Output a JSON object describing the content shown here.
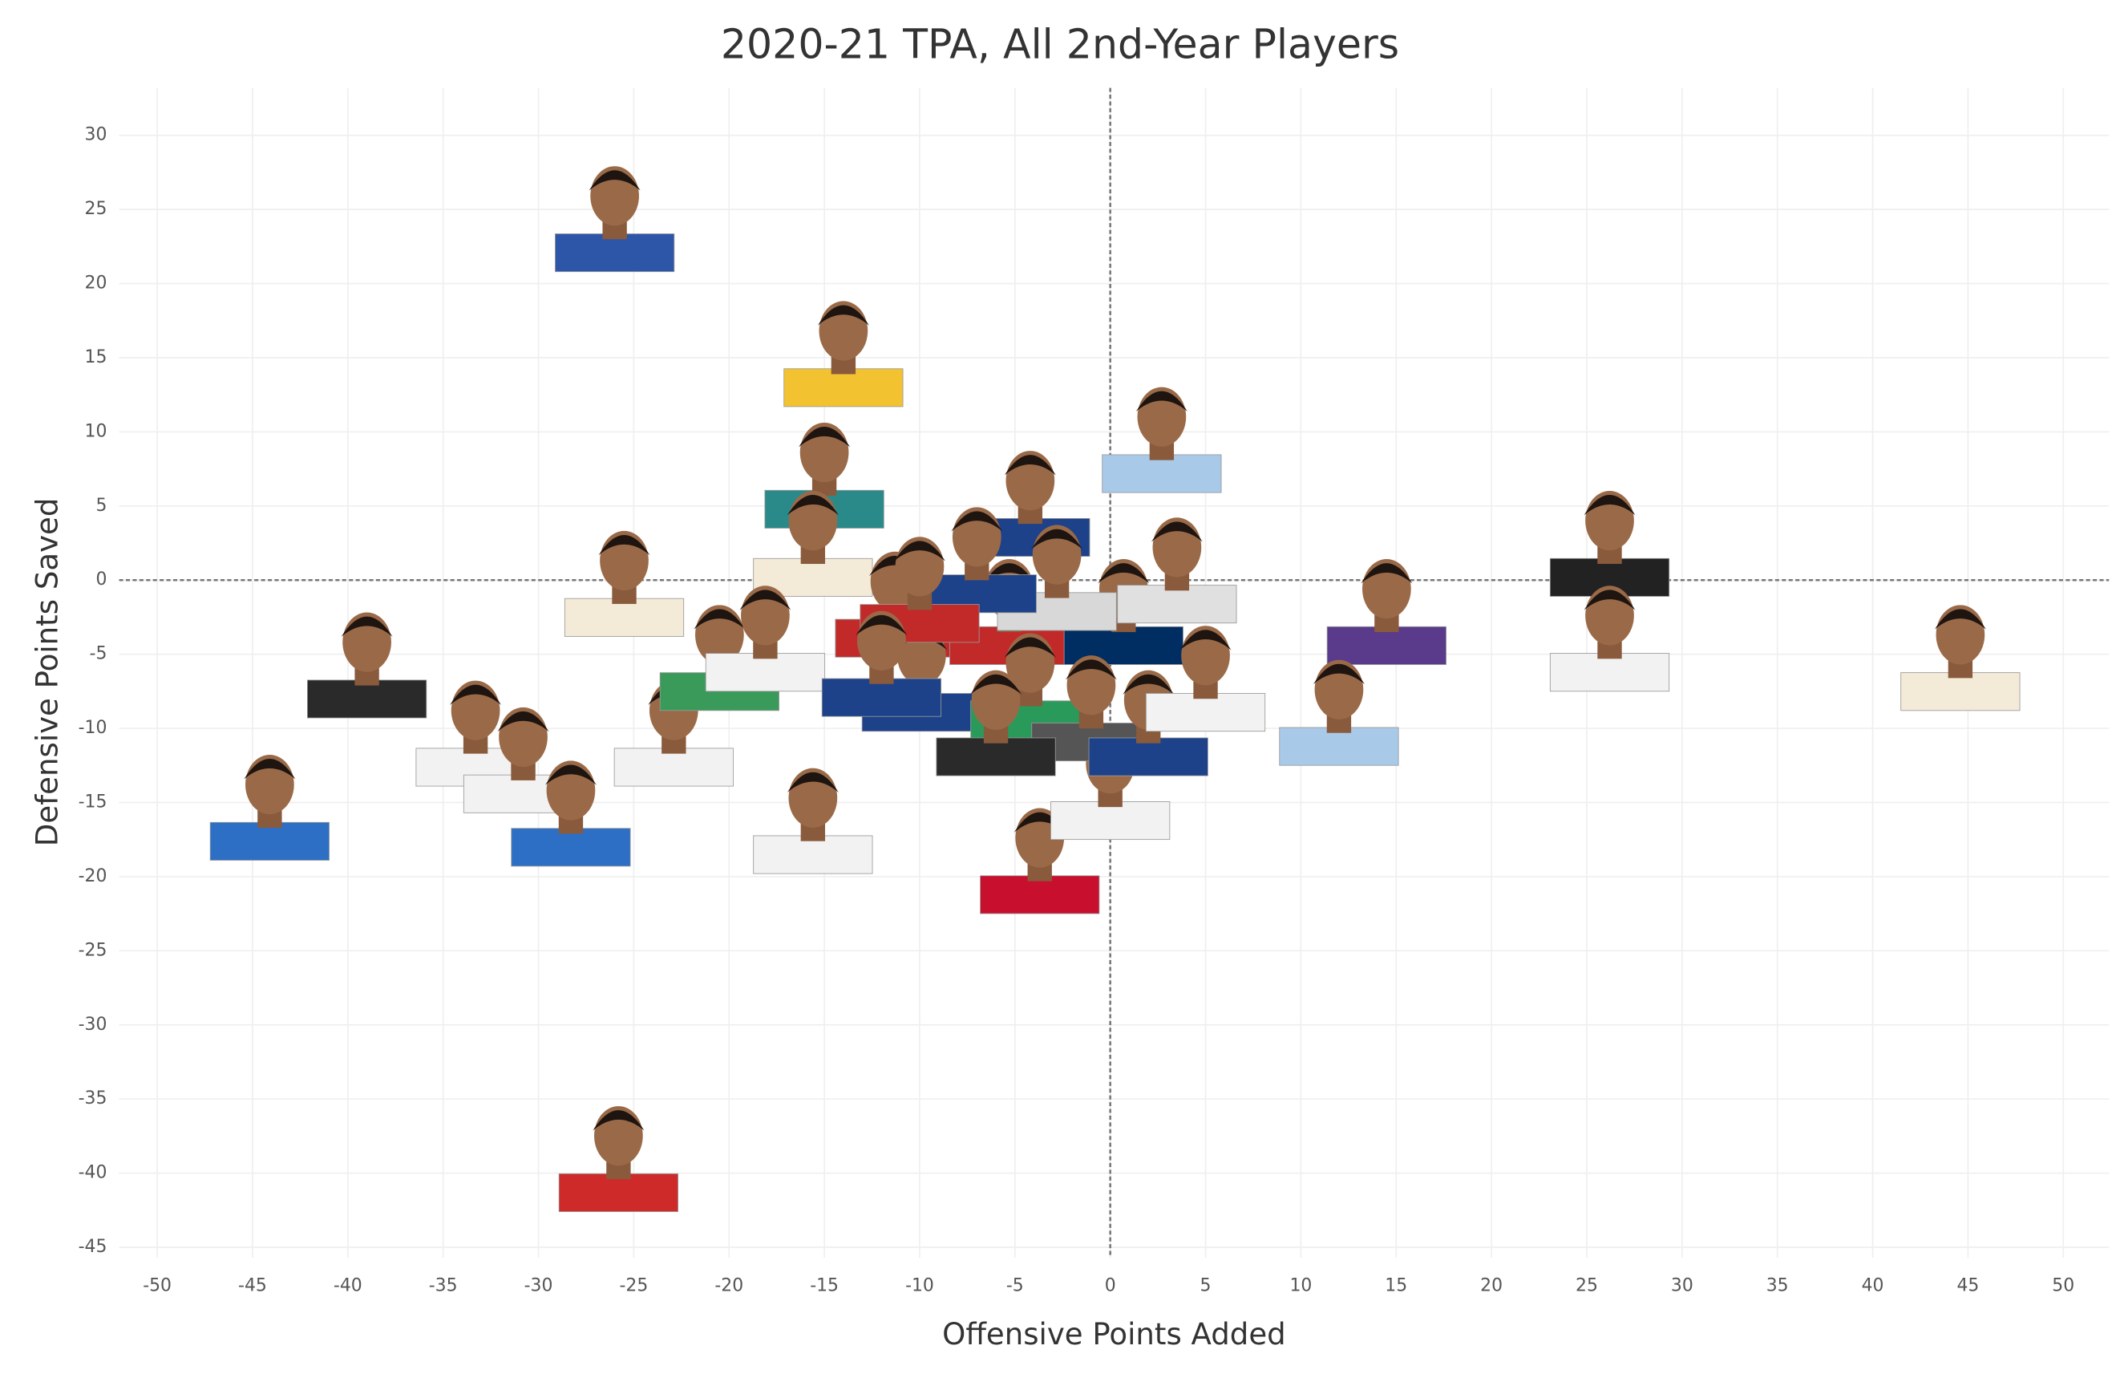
{
  "chart_data": {
    "type": "scatter",
    "title": "2020-21 TPA, All 2nd-Year Players",
    "x_label": "Offensive Points Added",
    "y_label": "Defensive Points Saved",
    "xlim": [
      -52,
      52.4
    ],
    "ylim": [
      -45.7,
      33.2
    ],
    "xticks": [
      -50,
      -45,
      -40,
      -35,
      -30,
      -25,
      -20,
      -15,
      -10,
      -5,
      0,
      5,
      10,
      15,
      20,
      25,
      30,
      35,
      40,
      45,
      50
    ],
    "yticks": [
      -45,
      -40,
      -35,
      -30,
      -25,
      -20,
      -15,
      -10,
      -5,
      0,
      5,
      10,
      15,
      20,
      25,
      30
    ],
    "grid": true,
    "x": [
      -26,
      -14,
      2.7,
      -15,
      -15.6,
      -25.5,
      -39,
      -44.1,
      -33.3,
      -30.8,
      -28.3,
      -22.9,
      -20.5,
      -18.1,
      -15.6,
      -11.3,
      -9.9,
      -5.3,
      -3.7,
      0,
      0.7,
      3.5,
      14.5,
      12,
      26.2,
      26.2,
      44.6,
      -25.8,
      -4.2,
      -2.8,
      -4.2,
      -7,
      -10,
      -1,
      2,
      5,
      -6,
      -12
    ],
    "values": [
      25,
      15.9,
      10.1,
      7.7,
      3.1,
      0.4,
      -5.1,
      -14.7,
      -9.7,
      -11.5,
      -15.1,
      -9.7,
      -4.6,
      -3.3,
      -15.6,
      -1,
      -6,
      -1.5,
      -18.3,
      -13.3,
      -1.5,
      1.3,
      -1.5,
      -8.3,
      3.1,
      -3.3,
      -4.6,
      -38.4,
      5.8,
      0.8,
      -6.5,
      2,
      0,
      -8,
      -9,
      -6,
      -9,
      -5
    ],
    "colors": [
      "#2d56a8",
      "#f2c230",
      "#a9c9e8",
      "#2a8a8a",
      "#f3ead8",
      "#f3ead8",
      "#2a2a2a",
      "#2d6fc4",
      "#f2f2f2",
      "#f2f2f2",
      "#2d6fc4",
      "#f2f2f2",
      "#3a9a5a",
      "#f2f2f2",
      "#f2f2f2",
      "#c22a2a",
      "#1d428a",
      "#c22a2a",
      "#c8102e",
      "#f2f2f2",
      "#002d62",
      "#e0e0e0",
      "#5a3a8a",
      "#a9c9e8",
      "#222222",
      "#f2f2f2",
      "#f3ead8",
      "#ce2a2a",
      "#1d428a",
      "#d8d8d8",
      "#2a9a5a",
      "#1d428a",
      "#c22a2a",
      "#555555",
      "#1d428a",
      "#f2f2f2",
      "#2a2a2a",
      "#1d428a"
    ]
  }
}
